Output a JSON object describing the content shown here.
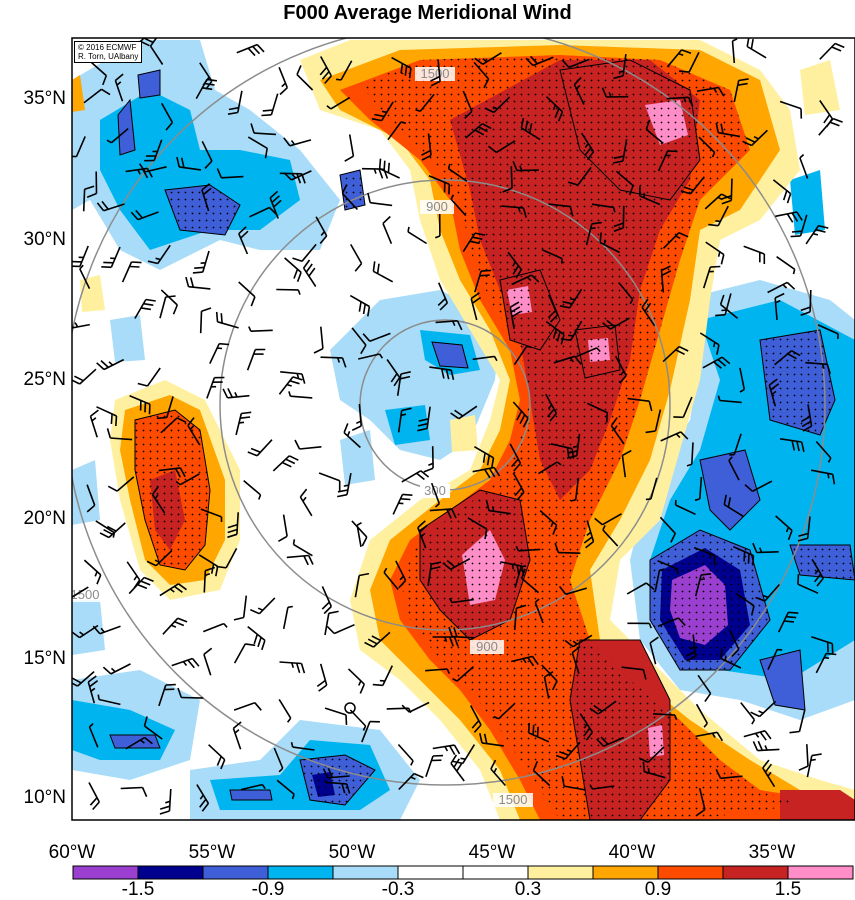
{
  "title": "F000 Average Meridional Wind",
  "credit": {
    "line1": "© 2016 ECMWF",
    "line2": "R. Torn, UAlbany"
  },
  "map": {
    "lon_range": [
      -60,
      -32
    ],
    "lat_range": [
      9,
      37
    ],
    "lat_ticks": [
      "35°N",
      "30°N",
      "25°N",
      "20°N",
      "15°N",
      "10°N"
    ],
    "lon_ticks": [
      "60°W",
      "55°W",
      "50°W",
      "45°W",
      "40°W",
      "35°W"
    ],
    "distance_ring_labels": [
      "300",
      "900",
      "1500"
    ],
    "center_marker": "circle-marker",
    "layers": [
      "filled-contours",
      "stippling",
      "range-rings",
      "wind-barbs"
    ]
  },
  "colorbar": {
    "labels": [
      "-1.5",
      "-0.9",
      "-0.3",
      "0.3",
      "0.9",
      "1.5"
    ],
    "colors": [
      "#9b3fd1",
      "#00008f",
      "#3f5fd8",
      "#00b4f0",
      "#a8dcf8",
      "#ffffff",
      "#ffffff",
      "#fff0a0",
      "#ffa600",
      "#ff4b00",
      "#c82323",
      "#ff8ec8"
    ]
  }
}
